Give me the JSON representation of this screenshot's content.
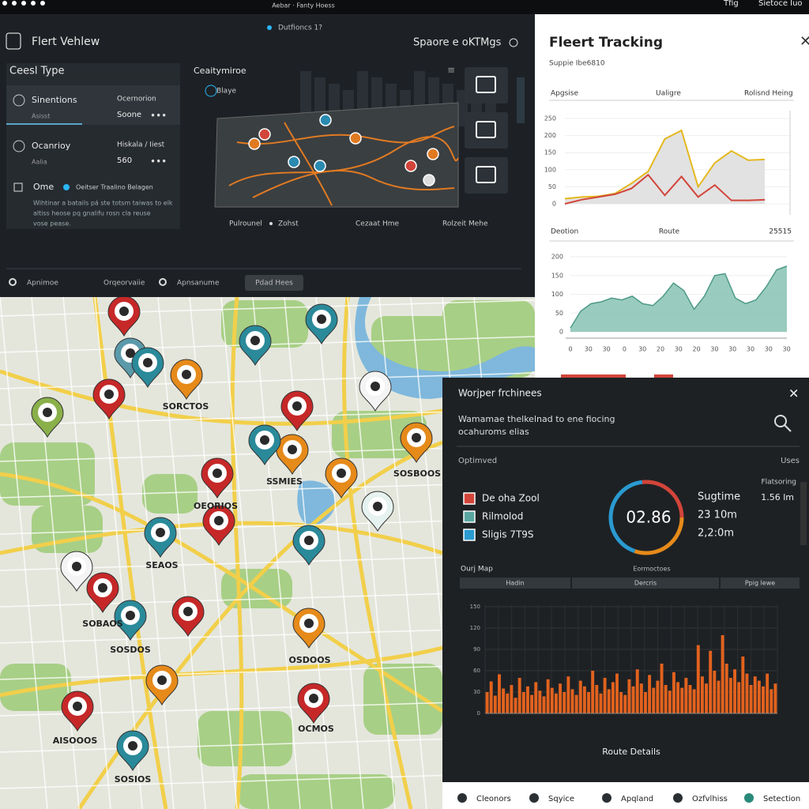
{
  "status_bar": {
    "caption": "Aebar · Fanty Hoess",
    "right": [
      "Tfig",
      "Sietoce Iuo"
    ]
  },
  "header": {
    "title": "Flert Vehlew",
    "status": "Dutfioncs 1?",
    "settings": "Spaore e oKTMgs"
  },
  "sidebar": {
    "title": "Ceesl Type",
    "items": [
      {
        "name": "Sinentions",
        "sub": "Asisst",
        "detail": "Ocernorion",
        "value": "Soone"
      },
      {
        "name": "Ocanrioy",
        "sub": "Aalia",
        "detail": "Hiskala / Iiest",
        "value": "560"
      }
    ],
    "checkbox": "Ome",
    "option": "Oeitser Traalino Belagen",
    "note": [
      "Wihtinar a batails pá ste totsm taiwas to elk",
      "altiss heose pq gnalifu rosn cla reuse",
      "vose pease."
    ]
  },
  "scene": {
    "title": "Ceaitymiroe",
    "badge": "Blaye",
    "labels": [
      "Pulrounel",
      "Zohst",
      "Cezaat Hme",
      "Rolzeit Mehe"
    ]
  },
  "tabs": [
    "Apnimoe",
    "Orqeorvaiie",
    "Apnsanume",
    "Pdad Hees"
  ],
  "map": {
    "labels": [
      "SORCTOS",
      "OEORIOS",
      "SOSBOOS",
      "SSMIES",
      "SOBAOS",
      "SOSDOS",
      "OSDOOS",
      "AISOOOS",
      "SOSIOS",
      "SEAOS",
      "OCMOS"
    ]
  },
  "tracking": {
    "title": "Fleert Tracking",
    "subtitle": "Suppie Ibe6810",
    "line_chart": {
      "headers": [
        "Apgsise",
        "Ualigre",
        "Rolisnd Heing"
      ],
      "ylim": [
        0,
        250
      ],
      "yticks": [
        0,
        50,
        100,
        150,
        200,
        250
      ],
      "series": [
        {
          "color": "#e5b81e",
          "values": [
            15,
            20,
            22,
            30,
            60,
            95,
            190,
            215,
            50,
            120,
            155,
            128,
            130
          ]
        },
        {
          "color": "#d2453a",
          "values": [
            0,
            12,
            20,
            28,
            45,
            85,
            25,
            80,
            20,
            55,
            10,
            10,
            12
          ]
        }
      ]
    },
    "area_chart": {
      "headers": [
        "Deotion",
        "Route",
        "25515"
      ],
      "ylim": [
        0,
        200
      ],
      "yticks": [
        0,
        50,
        100,
        150,
        200
      ],
      "color": "#7fbfae",
      "values": [
        10,
        55,
        75,
        80,
        90,
        85,
        95,
        75,
        70,
        95,
        130,
        110,
        60,
        95,
        150,
        155,
        90,
        75,
        85,
        120,
        165,
        175
      ],
      "xlabels": [
        "0",
        "30",
        "30",
        "0",
        "30",
        "20",
        "30",
        "20",
        "30",
        "30",
        "30",
        "30",
        "30"
      ]
    }
  },
  "workspace": {
    "title": "Worjper frchinees",
    "description": [
      "Wamamae thelkelnad to ene fiocing",
      "ocahuroms elias"
    ],
    "section": "Optimved",
    "section_right": "Uses",
    "legend": [
      {
        "name": "De oha Zool",
        "color": "#d2453a"
      },
      {
        "name": "Rilmolod",
        "color": "#5aa6a0"
      },
      {
        "name": "Sligis 7T9S",
        "color": "#2a9ad0"
      }
    ],
    "gauge": "02.86",
    "stats": [
      "Sugtime",
      "23 10m",
      "2,2:0m"
    ],
    "side_stat": [
      "Flatsoring",
      "1.56 lm"
    ],
    "map_title": "Ourj Map",
    "map_caption": "Eormoctoes",
    "columns": [
      "Hadin",
      "Dercris",
      "Ppig lewe"
    ],
    "bar_chart": {
      "color": "#e2621e",
      "ylim": [
        0,
        150
      ],
      "yticks": [
        0,
        30,
        60,
        90,
        120,
        150
      ],
      "values": [
        30,
        45,
        25,
        55,
        35,
        28,
        40,
        22,
        50,
        30,
        38,
        26,
        44,
        32,
        24,
        48,
        36,
        28,
        42,
        30,
        52,
        34,
        26,
        46,
        38,
        30,
        60,
        40,
        28,
        50,
        34,
        44,
        56,
        30,
        26,
        48,
        38,
        62,
        42,
        30,
        54,
        36,
        46,
        70,
        40,
        32,
        58,
        44,
        36,
        50,
        40,
        34,
        96,
        52,
        42,
        88,
        60,
        46,
        110,
        70,
        50,
        62,
        44,
        80,
        56,
        40,
        52,
        46,
        38,
        56,
        34,
        42
      ]
    },
    "footer": "Route Details"
  },
  "nav": [
    "Cleonors",
    "Sqyice",
    "Apqland",
    "Ozfvlhiss",
    "Setection"
  ]
}
